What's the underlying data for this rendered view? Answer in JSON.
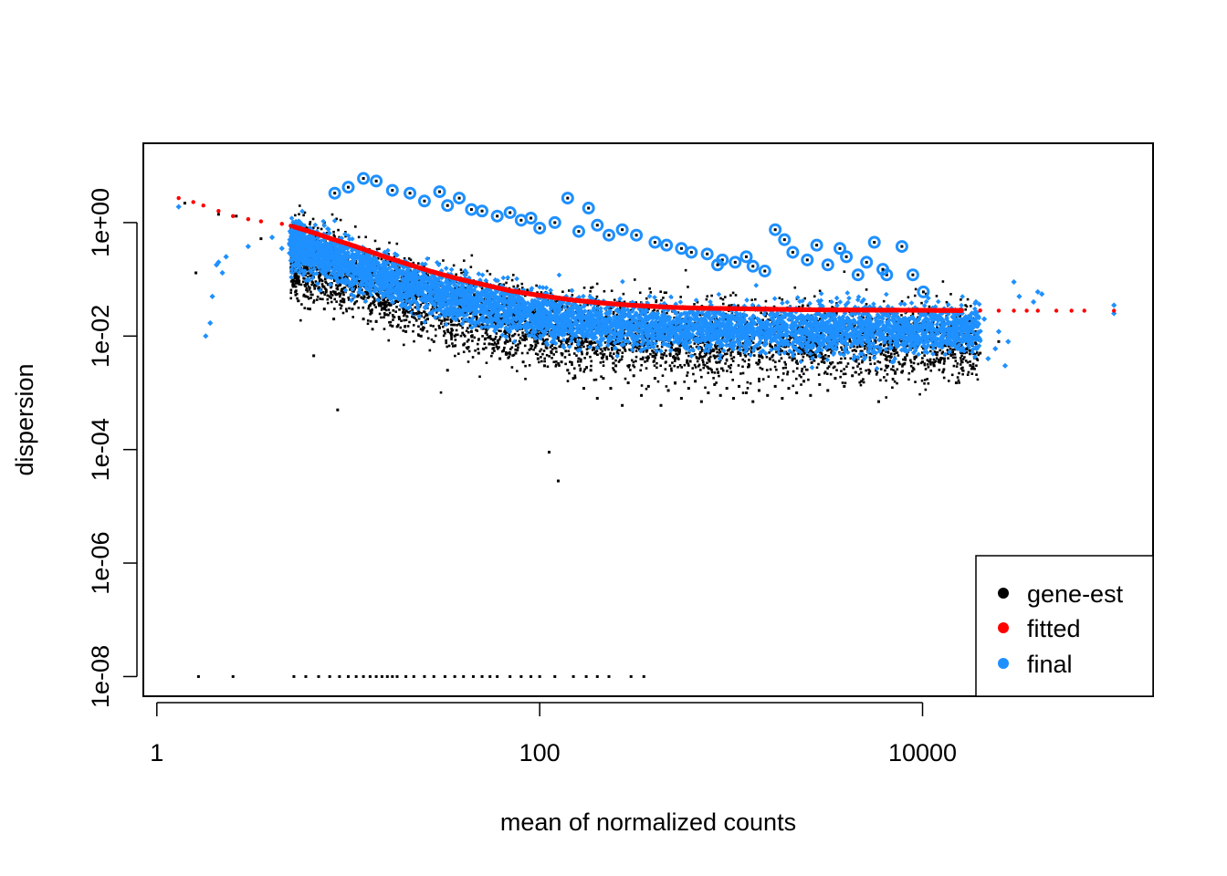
{
  "chart_data": {
    "type": "scatter",
    "title": "",
    "xlabel": "mean of normalized counts",
    "ylabel": "dispersion",
    "x_scale": "log10",
    "y_scale": "log10",
    "xlim": [
      0.85,
      160000
    ],
    "ylim": [
      4.5e-09,
      25
    ],
    "x_ticks": [
      {
        "value": 1,
        "label": "1"
      },
      {
        "value": 100,
        "label": "100"
      },
      {
        "value": 10000,
        "label": "10000"
      }
    ],
    "y_ticks": [
      {
        "value": 1e-08,
        "label": "1e-08"
      },
      {
        "value": 1e-06,
        "label": "1e-06"
      },
      {
        "value": 0.0001,
        "label": "1e-04"
      },
      {
        "value": 0.01,
        "label": "1e-02"
      },
      {
        "value": 1,
        "label": "1e+00"
      }
    ],
    "grid": false,
    "legend": {
      "position": "bottom-right",
      "entries": [
        {
          "label": "gene-est",
          "color": "#000000"
        },
        {
          "label": "fitted",
          "color": "#ff0000"
        },
        {
          "label": "final",
          "color": "#1e90ff"
        }
      ]
    },
    "series": [
      {
        "name": "gene-est",
        "color": "#000000",
        "marker": "small-square",
        "points": [
          [
            1.4,
            2.2
          ],
          [
            1.6,
            0.13
          ],
          [
            2.1,
            1.4
          ],
          [
            2.6,
            1.3
          ],
          [
            3.5,
            0.52
          ],
          [
            5.2,
            0.08
          ],
          [
            5.3,
            0.06
          ],
          [
            5.5,
            0.09
          ],
          [
            6.0,
            0.05
          ],
          [
            6.3,
            0.03
          ],
          [
            6.6,
            0.0045
          ],
          [
            7,
            0.07
          ],
          [
            7.5,
            0.03
          ],
          [
            8,
            0.05
          ],
          [
            8.4,
            0.02
          ],
          [
            8.8,
            0.0005
          ],
          [
            9.5,
            0.04
          ],
          [
            10.5,
            0.03
          ],
          [
            11.2,
            0.05
          ],
          [
            12,
            0.02
          ],
          [
            13,
            0.035
          ],
          [
            14,
            0.018
          ],
          [
            15.5,
            0.03
          ],
          [
            17,
            0.015
          ],
          [
            18.5,
            0.02
          ],
          [
            20,
            0.012
          ],
          [
            22,
            0.025
          ],
          [
            24,
            0.01
          ],
          [
            26,
            0.02
          ],
          [
            28,
            0.008
          ],
          [
            30,
            0.014
          ],
          [
            33,
            0.0025
          ],
          [
            36,
            0.01
          ],
          [
            40,
            0.007
          ],
          [
            44,
            0.012
          ],
          [
            48,
            0.005
          ],
          [
            52,
            0.009
          ],
          [
            57,
            0.006
          ],
          [
            62,
            0.004
          ],
          [
            68,
            0.008
          ],
          [
            75,
            0.005
          ],
          [
            82,
            0.0035
          ],
          [
            90,
            0.006
          ],
          [
            98,
            0.004
          ],
          [
            106,
            0.003
          ],
          [
            112,
            9e-05
          ],
          [
            125,
            2.8e-05
          ],
          [
            130,
            0.0035
          ],
          [
            140,
            0.0025
          ],
          [
            150,
            0.0018
          ],
          [
            160,
            0.004
          ],
          [
            170,
            0.0012
          ],
          [
            185,
            0.0025
          ],
          [
            200,
            0.0008
          ],
          [
            215,
            0.0018
          ],
          [
            235,
            0.0012
          ],
          [
            250,
            0.003
          ],
          [
            270,
            0.0006
          ],
          [
            290,
            0.0015
          ],
          [
            310,
            0.002
          ],
          [
            340,
            0.0009
          ],
          [
            370,
            0.0013
          ],
          [
            400,
            0.0018
          ],
          [
            430,
            0.0006
          ],
          [
            470,
            0.0011
          ],
          [
            510,
            0.0015
          ],
          [
            550,
            0.0008
          ],
          [
            600,
            0.0012
          ],
          [
            650,
            0.0016
          ],
          [
            700,
            0.0007
          ],
          [
            760,
            0.001
          ],
          [
            820,
            0.0014
          ],
          [
            880,
            0.0009
          ],
          [
            950,
            0.0012
          ],
          [
            1030,
            0.0008
          ],
          [
            1100,
            0.0013
          ],
          [
            1200,
            0.001
          ],
          [
            1300,
            0.0007
          ],
          [
            1400,
            0.0011
          ],
          [
            1550,
            0.0009
          ],
          [
            1700,
            0.0013
          ],
          [
            1850,
            0.0008
          ],
          [
            2000,
            0.0012
          ],
          [
            2200,
            0.001
          ],
          [
            2400,
            0.0016
          ],
          [
            2600,
            0.0009
          ],
          [
            2900,
            0.0014
          ],
          [
            3200,
            0.0011
          ],
          [
            3500,
            0.0018
          ],
          [
            3900,
            0.0013
          ],
          [
            4300,
            0.002
          ],
          [
            4800,
            0.0016
          ],
          [
            5300,
            0.0024
          ],
          [
            5900,
            0.0007
          ],
          [
            6500,
            0.0028
          ],
          [
            7200,
            0.0022
          ],
          [
            8000,
            0.0032
          ],
          [
            9000,
            0.0026
          ],
          [
            10000,
            0.0035
          ],
          [
            11500,
            0.003
          ],
          [
            13000,
            0.004
          ],
          [
            15000,
            0.0015
          ],
          [
            17000,
            0.006
          ],
          [
            20000,
            0.005
          ],
          [
            25000,
            0.008
          ],
          [
            1.65,
            1e-08
          ],
          [
            2.5,
            1e-08
          ],
          [
            5.2,
            1e-08
          ],
          [
            6,
            1e-08
          ],
          [
            7,
            1e-08
          ],
          [
            8,
            1e-08
          ],
          [
            9,
            1e-08
          ],
          [
            10,
            1e-08
          ],
          [
            11,
            1e-08
          ],
          [
            12,
            1e-08
          ],
          [
            13,
            1e-08
          ],
          [
            14,
            1e-08
          ],
          [
            15,
            1e-08
          ],
          [
            16,
            1e-08
          ],
          [
            17,
            1e-08
          ],
          [
            18,
            1e-08
          ],
          [
            20,
            1e-08
          ],
          [
            22,
            1e-08
          ],
          [
            25,
            1e-08
          ],
          [
            28,
            1e-08
          ],
          [
            32,
            1e-08
          ],
          [
            36,
            1e-08
          ],
          [
            40,
            1e-08
          ],
          [
            45,
            1e-08
          ],
          [
            50,
            1e-08
          ],
          [
            55,
            1e-08
          ],
          [
            60,
            1e-08
          ],
          [
            70,
            1e-08
          ],
          [
            80,
            1e-08
          ],
          [
            90,
            1e-08
          ],
          [
            100,
            1e-08
          ],
          [
            120,
            1e-08
          ],
          [
            150,
            1e-08
          ],
          [
            175,
            1e-08
          ],
          [
            200,
            1e-08
          ],
          [
            230,
            1e-08
          ],
          [
            300,
            1e-08
          ],
          [
            350,
            1e-08
          ]
        ]
      },
      {
        "name": "fitted",
        "color": "#ff0000",
        "marker": "line-of-points",
        "points": [
          [
            1.3,
            2.7
          ],
          [
            1.55,
            2.3
          ],
          [
            1.75,
            2.0
          ],
          [
            2.1,
            1.6
          ],
          [
            2.5,
            1.3
          ],
          [
            3.0,
            1.15
          ],
          [
            3.5,
            1.05
          ],
          [
            4.5,
            0.95
          ],
          [
            5.0,
            0.88
          ],
          [
            6,
            0.73
          ],
          [
            7,
            0.62
          ],
          [
            8,
            0.53
          ],
          [
            10,
            0.42
          ],
          [
            12,
            0.34
          ],
          [
            15,
            0.26
          ],
          [
            20,
            0.19
          ],
          [
            25,
            0.15
          ],
          [
            30,
            0.125
          ],
          [
            40,
            0.097
          ],
          [
            50,
            0.082
          ],
          [
            70,
            0.063
          ],
          [
            100,
            0.052
          ],
          [
            150,
            0.043
          ],
          [
            200,
            0.039
          ],
          [
            300,
            0.035
          ],
          [
            500,
            0.032
          ],
          [
            700,
            0.031
          ],
          [
            1000,
            0.0305
          ],
          [
            2000,
            0.0295
          ],
          [
            3000,
            0.029
          ],
          [
            5000,
            0.0288
          ],
          [
            10000,
            0.0285
          ],
          [
            15000,
            0.0283
          ],
          [
            20000,
            0.0282
          ],
          [
            25000,
            0.0281
          ],
          [
            30000,
            0.028
          ],
          [
            35000,
            0.028
          ],
          [
            40000,
            0.028
          ],
          [
            50000,
            0.028
          ],
          [
            60000,
            0.028
          ],
          [
            70000,
            0.028
          ],
          [
            100000,
            0.028
          ]
        ]
      },
      {
        "name": "final",
        "color": "#1e90ff",
        "marker": "small-diamond",
        "points": [
          [
            1.3,
            1.9
          ],
          [
            1.8,
            0.01
          ],
          [
            1.9,
            0.017
          ],
          [
            1.95,
            0.05
          ],
          [
            2.05,
            0.18
          ],
          [
            2.1,
            0.2
          ],
          [
            2.2,
            0.13
          ],
          [
            2.3,
            0.25
          ],
          [
            3.0,
            0.38
          ],
          [
            4.0,
            0.55
          ],
          [
            4.5,
            0.35
          ],
          [
            5.0,
            0.3
          ],
          [
            100000,
            0.035
          ],
          [
            100000,
            0.025
          ],
          [
            42000,
            0.055
          ],
          [
            40000,
            0.06
          ],
          [
            38000,
            0.04
          ],
          [
            32000,
            0.05
          ],
          [
            30000,
            0.09
          ],
          [
            25000,
            0.012
          ],
          [
            24000,
            0.006
          ],
          [
            22000,
            0.004
          ],
          [
            27000,
            0.003
          ],
          [
            28000,
            0.008
          ],
          [
            21000,
            0.02
          ],
          [
            19000,
            0.04
          ]
        ],
        "outliers": [
          [
            8.5,
            3.3
          ],
          [
            10,
            4.2
          ],
          [
            12,
            6.0
          ],
          [
            14,
            5.4
          ],
          [
            17,
            3.7
          ],
          [
            21,
            3.3
          ],
          [
            25,
            2.4
          ],
          [
            30,
            3.5
          ],
          [
            33,
            2.0
          ],
          [
            38,
            2.7
          ],
          [
            44,
            1.7
          ],
          [
            50,
            1.6
          ],
          [
            60,
            1.3
          ],
          [
            70,
            1.5
          ],
          [
            80,
            1.1
          ],
          [
            90,
            1.2
          ],
          [
            100,
            0.8
          ],
          [
            120,
            1.0
          ],
          [
            140,
            2.7
          ],
          [
            160,
            0.7
          ],
          [
            180,
            1.8
          ],
          [
            200,
            0.9
          ],
          [
            230,
            0.6
          ],
          [
            270,
            0.75
          ],
          [
            320,
            0.6
          ],
          [
            400,
            0.45
          ],
          [
            460,
            0.4
          ],
          [
            550,
            0.35
          ],
          [
            620,
            0.3
          ],
          [
            750,
            0.28
          ],
          [
            900,
            0.22
          ],
          [
            1050,
            0.2
          ],
          [
            1300,
            0.17
          ],
          [
            1500,
            0.14
          ],
          [
            1700,
            0.75
          ],
          [
            1900,
            0.5
          ],
          [
            2500,
            0.22
          ],
          [
            3200,
            0.18
          ],
          [
            4000,
            0.25
          ],
          [
            4600,
            0.12
          ],
          [
            5600,
            0.45
          ],
          [
            6500,
            0.12
          ],
          [
            7800,
            0.38
          ],
          [
            8900,
            0.12
          ],
          [
            10100,
            0.06
          ],
          [
            6200,
            0.15
          ],
          [
            5100,
            0.2
          ],
          [
            3700,
            0.35
          ],
          [
            2800,
            0.4
          ],
          [
            2100,
            0.3
          ],
          [
            1200,
            0.25
          ],
          [
            850,
            0.18
          ]
        ]
      }
    ]
  }
}
